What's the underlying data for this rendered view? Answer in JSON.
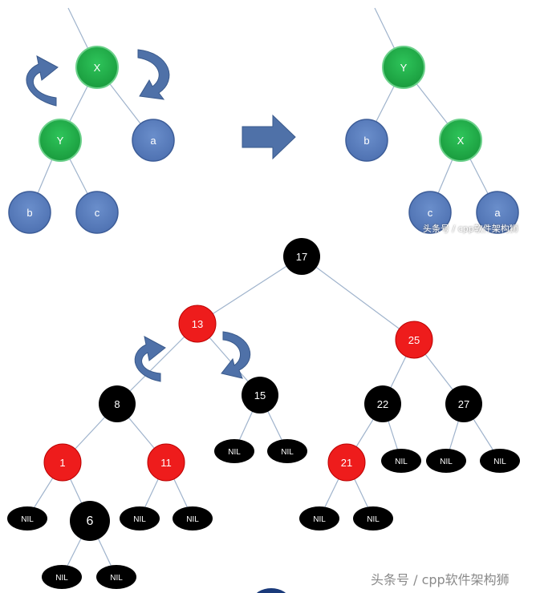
{
  "colors": {
    "green": "#22b24c",
    "blue": "#5b7fbf",
    "red": "#ee1c1c",
    "black": "#000000",
    "arrow": "#4f71a8",
    "edge": "#9fb3cc"
  },
  "top_left": {
    "nodes": [
      {
        "id": "X",
        "label": "X",
        "color": "green"
      },
      {
        "id": "Y",
        "label": "Y",
        "color": "green"
      },
      {
        "id": "a",
        "label": "a",
        "color": "blue"
      },
      {
        "id": "b",
        "label": "b",
        "color": "blue"
      },
      {
        "id": "c",
        "label": "c",
        "color": "blue"
      }
    ]
  },
  "top_right": {
    "nodes": [
      {
        "id": "Y",
        "label": "Y",
        "color": "green"
      },
      {
        "id": "b",
        "label": "b",
        "color": "blue"
      },
      {
        "id": "X",
        "label": "X",
        "color": "green"
      },
      {
        "id": "c",
        "label": "c",
        "color": "blue"
      },
      {
        "id": "a",
        "label": "a",
        "color": "blue"
      }
    ]
  },
  "rb_tree": {
    "nodes": [
      {
        "id": "n17",
        "label": "17",
        "color": "black"
      },
      {
        "id": "n13",
        "label": "13",
        "color": "red"
      },
      {
        "id": "n25",
        "label": "25",
        "color": "red"
      },
      {
        "id": "n8",
        "label": "8",
        "color": "black"
      },
      {
        "id": "n15",
        "label": "15",
        "color": "black"
      },
      {
        "id": "n22",
        "label": "22",
        "color": "black"
      },
      {
        "id": "n27",
        "label": "27",
        "color": "black"
      },
      {
        "id": "n1",
        "label": "1",
        "color": "red"
      },
      {
        "id": "n11",
        "label": "11",
        "color": "red"
      },
      {
        "id": "n21",
        "label": "21",
        "color": "red"
      },
      {
        "id": "n6",
        "label": "6",
        "color": "black"
      }
    ],
    "nil_label": "NIL"
  },
  "watermark": "头条号 / cpp软件架构狮",
  "watermark_small": "头条号 / cpp软件架构狮"
}
